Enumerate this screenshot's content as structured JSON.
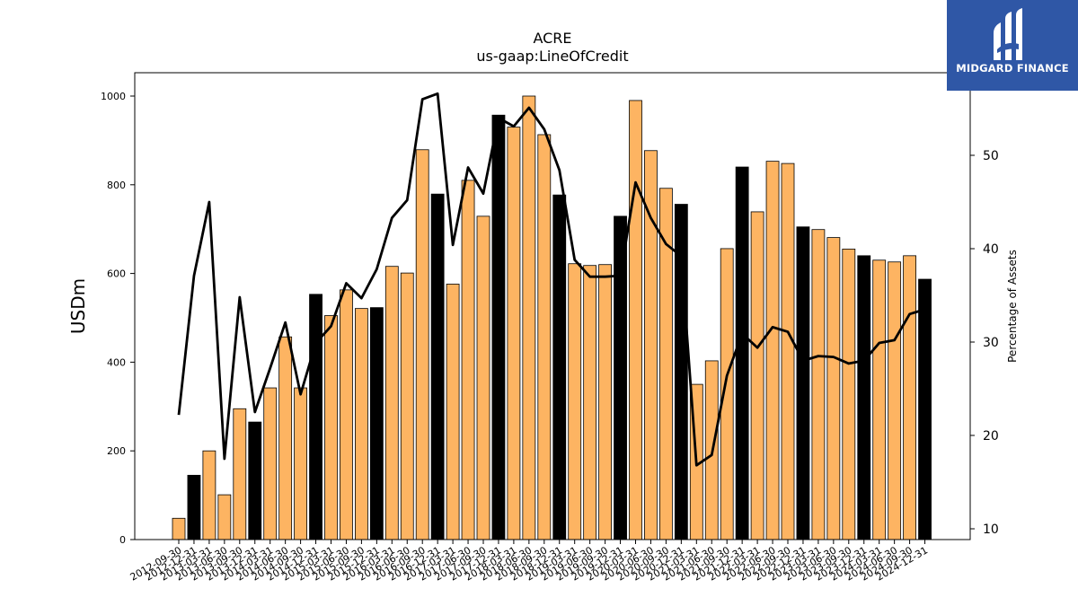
{
  "brand": {
    "name": "MIDGARD FINANCE",
    "colors": {
      "background": "#2f57a6",
      "text": "#ffffff"
    }
  },
  "chart_data": {
    "type": "bar",
    "title": "ACRE",
    "subtitle": "us-gaap:LineOfCredit",
    "ylabel": "USDm",
    "y2label": "Percentage of Assets",
    "ylim": [
      0,
      1050
    ],
    "y2lim": [
      9,
      59
    ],
    "yticks": [
      0,
      200,
      400,
      600,
      800,
      1000
    ],
    "y2ticks": [
      10,
      20,
      30,
      40,
      50
    ],
    "grid": false,
    "colors": {
      "bar": "#fdb462",
      "bar_year_end": "#000000",
      "line": "#000000"
    },
    "categories": [
      "2012-09-30",
      "2012-12-31",
      "2013-03-31",
      "2013-06-30",
      "2013-09-30",
      "2013-12-31",
      "2014-03-31",
      "2014-06-30",
      "2014-09-30",
      "2014-12-31",
      "2015-03-31",
      "2015-06-30",
      "2015-09-30",
      "2015-12-31",
      "2016-03-31",
      "2016-06-30",
      "2016-09-30",
      "2016-12-31",
      "2017-03-31",
      "2017-06-30",
      "2017-09-30",
      "2017-12-31",
      "2018-03-31",
      "2018-06-30",
      "2018-09-30",
      "2018-12-31",
      "2019-03-31",
      "2019-06-30",
      "2019-09-30",
      "2019-12-31",
      "2020-03-31",
      "2020-06-30",
      "2020-09-30",
      "2020-12-31",
      "2021-03-31",
      "2021-06-30",
      "2021-09-30",
      "2021-12-31",
      "2022-03-31",
      "2022-06-30",
      "2022-09-30",
      "2022-12-31",
      "2023-03-31",
      "2023-06-30",
      "2023-09-30",
      "2023-12-31",
      "2024-03-31",
      "2024-06-30",
      "2024-09-30",
      "2024-12-31"
    ],
    "series": [
      {
        "kind": "bar",
        "axis": "left",
        "values": [
          48,
          145,
          200,
          101,
          295,
          265,
          342,
          457,
          342,
          553,
          505,
          563,
          521,
          523,
          616,
          601,
          879,
          779,
          576,
          810,
          729,
          957,
          930,
          1000,
          913,
          777,
          622,
          618,
          620,
          729,
          990,
          877,
          792,
          756,
          350,
          403,
          656,
          840,
          739,
          853,
          848,
          705,
          699,
          681,
          655,
          640,
          630,
          626,
          640,
          587
        ]
      },
      {
        "kind": "line",
        "axis": "right",
        "values": [
          22.2,
          37.1,
          45.0,
          17.5,
          34.8,
          22.5,
          27.2,
          32.1,
          24.4,
          29.9,
          31.7,
          36.3,
          34.7,
          37.8,
          43.3,
          45.2,
          56.0,
          56.6,
          40.4,
          48.7,
          45.9,
          54.0,
          53.1,
          55.1,
          52.8,
          48.4,
          38.8,
          37.0,
          37.0,
          37.1,
          47.1,
          43.3,
          40.5,
          39.2,
          16.8,
          17.9,
          26.4,
          30.9,
          29.4,
          31.6,
          31.1,
          28.0,
          28.5,
          28.4,
          27.7,
          28.0,
          29.9,
          30.2,
          33.0,
          33.5
        ]
      }
    ]
  }
}
